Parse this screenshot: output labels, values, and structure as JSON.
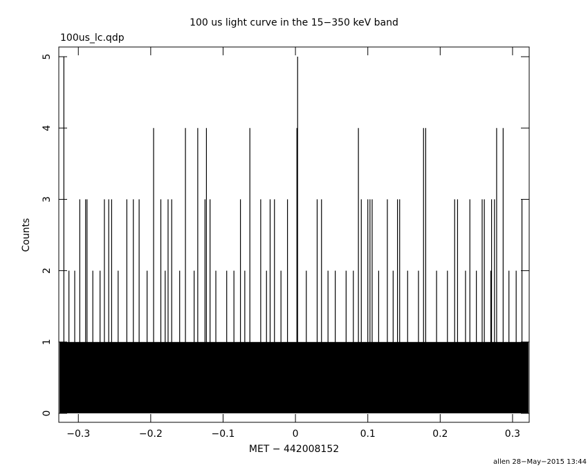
{
  "chart_data": {
    "type": "spikes",
    "title": "100 us light curve in the 15−350 keV band",
    "subtitle": "100us_lc.qdp",
    "x_label": "MET − 442008152",
    "y_label": "Counts",
    "footer": "allen 28−May−2015 13:44",
    "color": "#000000",
    "x": [
      -0.32,
      0.003,
      -0.196,
      -0.152,
      -0.135,
      -0.123,
      -0.063,
      0.002,
      0.087,
      0.177,
      0.18,
      0.278,
      0.287,
      -0.298,
      -0.29,
      -0.288,
      -0.264,
      -0.258,
      -0.254,
      -0.233,
      -0.224,
      -0.216,
      -0.186,
      -0.176,
      -0.171,
      -0.125,
      -0.118,
      -0.076,
      -0.048,
      -0.035,
      -0.029,
      -0.011,
      0.03,
      0.036,
      0.091,
      0.1,
      0.103,
      0.106,
      0.127,
      0.141,
      0.144,
      0.22,
      0.224,
      0.241,
      0.258,
      0.261,
      0.271,
      0.275,
      0.313,
      -0.313,
      -0.305,
      -0.28,
      -0.27,
      -0.245,
      -0.205,
      -0.18,
      -0.16,
      -0.14,
      -0.11,
      -0.095,
      -0.085,
      -0.07,
      -0.04,
      -0.02,
      0.015,
      0.045,
      0.055,
      0.07,
      0.08,
      0.115,
      0.135,
      0.155,
      0.17,
      0.195,
      0.21,
      0.235,
      0.25,
      0.27,
      0.295,
      0.305
    ],
    "values": [
      5,
      5,
      4,
      4,
      4,
      4,
      4,
      4,
      4,
      4,
      4,
      4,
      4,
      3,
      3,
      3,
      3,
      3,
      3,
      3,
      3,
      3,
      3,
      3,
      3,
      3,
      3,
      3,
      3,
      3,
      3,
      3,
      3,
      3,
      3,
      3,
      3,
      3,
      3,
      3,
      3,
      3,
      3,
      3,
      3,
      3,
      3,
      3,
      3,
      2,
      2,
      2,
      2,
      2,
      2,
      2,
      2,
      2,
      2,
      2,
      2,
      2,
      2,
      2,
      2,
      2,
      2,
      2,
      2,
      2,
      2,
      2,
      2,
      2,
      2,
      2,
      2,
      2,
      2,
      2
    ],
    "xlim": [
      -0.327,
      0.323
    ],
    "ylim": [
      -0.126,
      5.136
    ],
    "xticks": [
      {
        "value": -0.3,
        "label": "−0.3"
      },
      {
        "value": -0.2,
        "label": "−0.2"
      },
      {
        "value": -0.1,
        "label": "−0.1"
      },
      0,
      0.1,
      0.2,
      0.3
    ],
    "yticks": [
      0,
      1,
      2,
      3,
      4,
      5
    ]
  }
}
